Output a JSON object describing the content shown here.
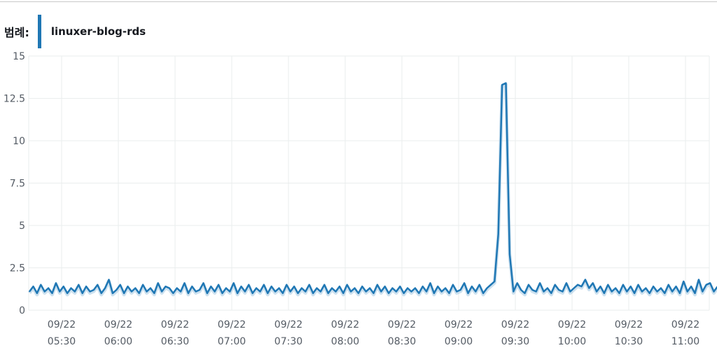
{
  "legend": {
    "title": "범례:",
    "series_label": "linuxer-blog-rds"
  },
  "colors": {
    "series": "#1f77b4",
    "grid": "#eaeded"
  },
  "chart_data": {
    "type": "line",
    "title": "",
    "xlabel": "",
    "ylabel": "",
    "ylim": [
      0,
      15
    ],
    "yticks": [
      "0",
      "2.5",
      "5",
      "7.5",
      "10",
      "12.5",
      "15"
    ],
    "ytick_values": [
      0,
      2.5,
      5,
      7.5,
      10,
      12.5,
      15
    ],
    "xlim_minutes": [
      312.6,
      672.6
    ],
    "xticks": [
      {
        "date": "09/22",
        "time": "05:30",
        "minute": 330
      },
      {
        "date": "09/22",
        "time": "06:00",
        "minute": 360
      },
      {
        "date": "09/22",
        "time": "06:30",
        "minute": 390
      },
      {
        "date": "09/22",
        "time": "07:00",
        "minute": 420
      },
      {
        "date": "09/22",
        "time": "07:30",
        "minute": 450
      },
      {
        "date": "09/22",
        "time": "08:00",
        "minute": 480
      },
      {
        "date": "09/22",
        "time": "08:30",
        "minute": 510
      },
      {
        "date": "09/22",
        "time": "09:00",
        "minute": 540
      },
      {
        "date": "09/22",
        "time": "09:30",
        "minute": 570
      },
      {
        "date": "09/22",
        "time": "10:00",
        "minute": 600
      },
      {
        "date": "09/22",
        "time": "10:30",
        "minute": 630
      },
      {
        "date": "09/22",
        "time": "11:00",
        "minute": 660
      }
    ],
    "grid": true,
    "legend_position": "top-left",
    "series": [
      {
        "name": "linuxer-blog-rds",
        "start_minute": 313,
        "step_minutes": 2,
        "values": [
          1.1,
          1.4,
          1.0,
          1.5,
          1.1,
          1.3,
          1.0,
          1.6,
          1.1,
          1.4,
          1.0,
          1.3,
          1.1,
          1.5,
          1.0,
          1.4,
          1.1,
          1.2,
          1.5,
          1.0,
          1.3,
          1.8,
          1.0,
          1.2,
          1.5,
          1.0,
          1.4,
          1.1,
          1.3,
          1.0,
          1.5,
          1.1,
          1.3,
          1.0,
          1.6,
          1.1,
          1.4,
          1.3,
          1.0,
          1.3,
          1.1,
          1.6,
          1.0,
          1.4,
          1.1,
          1.2,
          1.6,
          1.0,
          1.4,
          1.1,
          1.5,
          1.0,
          1.3,
          1.1,
          1.6,
          1.0,
          1.4,
          1.1,
          1.5,
          1.0,
          1.3,
          1.1,
          1.5,
          1.0,
          1.4,
          1.1,
          1.3,
          1.0,
          1.5,
          1.1,
          1.4,
          1.0,
          1.3,
          1.1,
          1.5,
          1.0,
          1.3,
          1.1,
          1.5,
          1.0,
          1.3,
          1.1,
          1.4,
          1.0,
          1.5,
          1.1,
          1.3,
          1.0,
          1.4,
          1.1,
          1.3,
          1.0,
          1.5,
          1.1,
          1.4,
          1.0,
          1.3,
          1.1,
          1.4,
          1.0,
          1.3,
          1.1,
          1.3,
          1.0,
          1.4,
          1.1,
          1.6,
          1.0,
          1.4,
          1.1,
          1.3,
          1.0,
          1.5,
          1.1,
          1.2,
          1.6,
          1.0,
          1.4,
          1.1,
          1.5,
          1.0,
          1.3,
          1.5,
          1.7,
          4.5,
          13.3,
          13.4,
          3.3,
          1.1,
          1.6,
          1.2,
          1.0,
          1.5,
          1.2,
          1.1,
          1.6,
          1.1,
          1.3,
          1.0,
          1.5,
          1.2,
          1.1,
          1.6,
          1.1,
          1.3,
          1.5,
          1.4,
          1.8,
          1.3,
          1.6,
          1.1,
          1.4,
          1.0,
          1.5,
          1.1,
          1.3,
          1.0,
          1.5,
          1.1,
          1.4,
          1.0,
          1.5,
          1.1,
          1.3,
          1.0,
          1.4,
          1.1,
          1.3,
          1.0,
          1.5,
          1.1,
          1.4,
          1.0,
          1.7,
          1.1,
          1.4,
          1.0,
          1.8,
          1.1,
          1.5,
          1.6,
          1.1,
          1.4,
          1.5
        ]
      }
    ]
  }
}
